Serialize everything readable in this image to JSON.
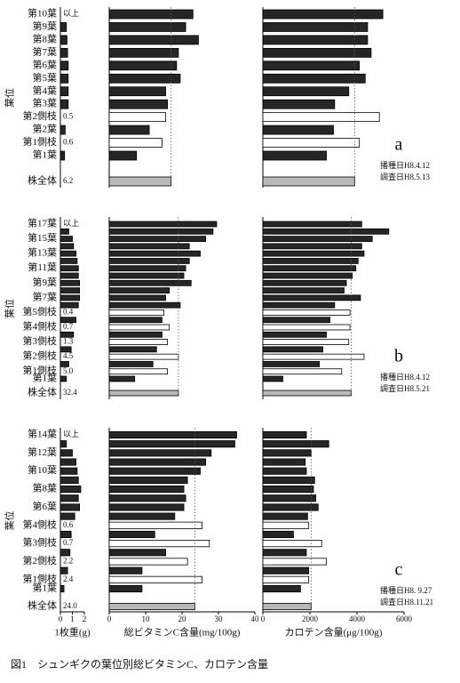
{
  "chart_data": {
    "type": "bar",
    "orientation": "horizontal",
    "caption": "図1　シュンギクの葉位別総ビタミンC、カロテン含量",
    "y_label": "葉位",
    "reference_line": "whole",
    "colors": {
      "leaf": "#262626",
      "branch": "#ffffff",
      "whole": "#b8b8b8"
    },
    "axes": [
      {
        "label": "1枚重(g)",
        "xlim": [
          0,
          2
        ],
        "xticks": [
          0,
          1,
          2
        ]
      },
      {
        "label": "総ビタミンC含量(mg/100g)",
        "xlim": [
          0,
          40
        ],
        "xticks": [
          0,
          10,
          20,
          30,
          40
        ]
      },
      {
        "label": "カロテン含量(μg/100g)",
        "xlim": [
          0,
          6000
        ],
        "xticks": [
          0,
          2000,
          4000,
          6000
        ]
      }
    ],
    "panels": [
      {
        "label": "a",
        "notes": [
          "播種日H8.4.12",
          "調査日H8.5.13"
        ],
        "categories": [
          "第10葉",
          "第9葉",
          "第8葉",
          "第7葉",
          "第6葉",
          "第5葉",
          "第4葉",
          "第3葉",
          "第2側枝",
          "第2葉",
          "第1側枝",
          "第1葉",
          "株全体"
        ],
        "row_kinds": [
          "leaf",
          "leaf",
          "leaf",
          "leaf",
          "leaf",
          "leaf",
          "leaf",
          "leaf",
          "branch",
          "leaf",
          "branch",
          "leaf",
          "whole"
        ],
        "series": [
          {
            "values": [
              null,
              0.5,
              0.55,
              0.6,
              0.65,
              0.65,
              0.65,
              0.65,
              0.5,
              0.4,
              0.6,
              0.35,
              6.2
            ],
            "value_labels": [
              "以上",
              null,
              null,
              null,
              null,
              null,
              null,
              null,
              "0.5",
              null,
              "0.6",
              null,
              "6.2"
            ]
          },
          {
            "values": [
              23,
              21,
              24.5,
              19,
              18.5,
              19.5,
              15.5,
              16,
              15.5,
              11,
              14.5,
              7.5,
              17
            ]
          },
          {
            "values": [
              5100,
              4450,
              4450,
              4600,
              4100,
              4350,
              3650,
              3050,
              4950,
              3000,
              4100,
              2700,
              3900
            ]
          }
        ]
      },
      {
        "label": "b",
        "notes": [
          "播種日H8.4.12",
          "調査日H8.5.21"
        ],
        "categories": [
          "第17葉",
          null,
          "第15葉",
          null,
          "第13葉",
          null,
          "第11葉",
          null,
          "第9葉",
          null,
          "第7葉",
          null,
          "第5側枝",
          null,
          "第4側枝",
          null,
          "第3側枝",
          null,
          "第2側枝",
          null,
          "第1側枝",
          "第1葉",
          "株全体"
        ],
        "row_kinds": [
          "leaf",
          "leaf",
          "leaf",
          "leaf",
          "leaf",
          "leaf",
          "leaf",
          "leaf",
          "leaf",
          "leaf",
          "leaf",
          "leaf",
          "branch",
          "leaf",
          "branch",
          "leaf",
          "branch",
          "leaf",
          "branch",
          "leaf",
          "branch",
          "leaf",
          "whole"
        ],
        "series": [
          {
            "values": [
              null,
              0.7,
              1.0,
              1.1,
              1.3,
              1.4,
              1.5,
              1.5,
              1.6,
              1.6,
              1.6,
              1.5,
              0.4,
              1.3,
              0.7,
              1.1,
              1.3,
              0.9,
              4.5,
              0.7,
              5.0,
              0.5,
              32.4
            ],
            "value_labels": [
              "以上",
              null,
              null,
              null,
              null,
              null,
              null,
              null,
              null,
              null,
              null,
              null,
              "0.4",
              null,
              "0.7",
              null,
              "1.3",
              null,
              "4.5",
              null,
              "5.0",
              null,
              "32.4"
            ]
          },
          {
            "values": [
              29.5,
              28.5,
              26.5,
              22,
              25,
              22,
              21,
              20.5,
              22.5,
              16.5,
              15.5,
              19.5,
              15,
              14.5,
              16.5,
              14.5,
              16,
              13,
              19,
              12,
              16,
              7,
              19
            ]
          },
          {
            "values": [
              4200,
              5350,
              4650,
              4200,
              4300,
              4050,
              3950,
              3800,
              3550,
              3450,
              4150,
              3050,
              3700,
              2850,
              3700,
              2700,
              3650,
              2550,
              4300,
              2400,
              3350,
              850,
              3750
            ]
          }
        ]
      },
      {
        "label": "c",
        "notes": [
          "播種日H8. 9.27",
          "調査日H8.11.21"
        ],
        "categories": [
          "第14葉",
          null,
          "第12葉",
          null,
          "第10葉",
          null,
          "第8葉",
          null,
          "第6葉",
          null,
          "第4側枝",
          null,
          "第3側枝",
          null,
          "第2側枝",
          null,
          "第1側枝",
          "第1葉",
          "株全体"
        ],
        "row_kinds": [
          "leaf",
          "leaf",
          "leaf",
          "leaf",
          "leaf",
          "leaf",
          "leaf",
          "leaf",
          "leaf",
          "leaf",
          "branch",
          "leaf",
          "branch",
          "leaf",
          "branch",
          "leaf",
          "branch",
          "leaf",
          "whole"
        ],
        "series": [
          {
            "values": [
              null,
              0.5,
              1.0,
              1.3,
              1.4,
              1.5,
              1.7,
              1.5,
              1.6,
              1.2,
              0.6,
              0.9,
              0.7,
              0.8,
              2.2,
              0.6,
              2.4,
              0.3,
              24.0
            ],
            "value_labels": [
              "以上",
              null,
              null,
              null,
              null,
              null,
              null,
              null,
              null,
              null,
              "0.6",
              null,
              "0.7",
              null,
              "2.2",
              null,
              "2.4",
              null,
              "24.0"
            ]
          },
          {
            "values": [
              35,
              34.5,
              28,
              26.5,
              25,
              21.5,
              20.5,
              21,
              20.5,
              18,
              25.5,
              12.5,
              27.5,
              15.5,
              21.5,
              9,
              25.5,
              9,
              23.5
            ]
          },
          {
            "values": [
              1850,
              2800,
              2050,
              1800,
              1850,
              2200,
              2150,
              2250,
              2350,
              1900,
              1950,
              1300,
              2500,
              1850,
              2700,
              1950,
              1950,
              1600,
              2050
            ]
          }
        ]
      }
    ]
  }
}
